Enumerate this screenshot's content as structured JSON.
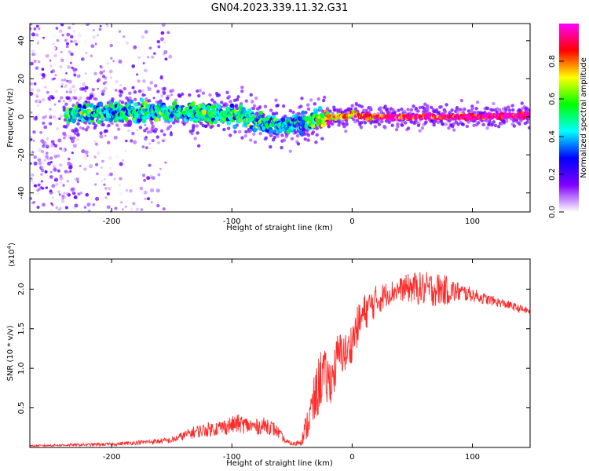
{
  "title": "GN04.2023.339.11.32.G31",
  "chart_data": [
    {
      "type": "heatmap",
      "xlabel": "Height of straight line (km)",
      "ylabel": "Frequency (Hz)",
      "xlim": [
        -268,
        148
      ],
      "ylim": [
        -50,
        49
      ],
      "xticks": [
        -200,
        -100,
        0,
        100
      ],
      "yticks": [
        -40,
        -20,
        0,
        20,
        40
      ],
      "colorbar": {
        "label": "Normalized spectral amplitude",
        "range": [
          0,
          1
        ],
        "ticks": [
          0.0,
          0.2,
          0.4,
          0.6,
          0.8
        ],
        "tick_labels": [
          "0.0",
          "0.2",
          "0.4",
          "0.6",
          "0.8"
        ],
        "colormap": [
          "#ffffff",
          "#8000ff",
          "#0000ff",
          "#00ffff",
          "#00ff00",
          "#ffff00",
          "#ff0000",
          "#ff00ff"
        ]
      },
      "trace": {
        "x": [
          -235,
          -200,
          -160,
          -130,
          -100,
          -80,
          -60,
          -45,
          -38,
          -30,
          -20,
          -10,
          -3,
          0,
          5,
          10,
          30,
          60,
          100,
          148
        ],
        "freq": [
          2,
          2,
          3,
          2,
          1,
          -2,
          -5,
          -4,
          -4,
          -1,
          0,
          0,
          0,
          2,
          1,
          0,
          0,
          0,
          0,
          1
        ],
        "amplitude": [
          0.45,
          0.45,
          0.45,
          0.5,
          0.5,
          0.45,
          0.4,
          0.35,
          0.45,
          0.6,
          0.75,
          0.8,
          0.8,
          0.75,
          0.8,
          0.85,
          0.9,
          0.95,
          0.95,
          0.95
        ]
      }
    },
    {
      "type": "line",
      "xlabel": "Height of straight line (km)",
      "ylabel": "SNR (10 * v/v)",
      "y_multiplier_label": "(x10",
      "y_multiplier_exp": "4",
      "xlim": [
        -268,
        148
      ],
      "ylim": [
        0,
        23800
      ],
      "xticks": [
        -200,
        -100,
        0,
        100
      ],
      "yticks": [
        5000,
        10000,
        15000,
        20000
      ],
      "ytick_labels": [
        "0.5",
        "1.0",
        "1.5",
        "2.0"
      ],
      "series": [
        {
          "color": "#ff2a2a",
          "x": [
            -268,
            -240,
            -200,
            -170,
            -150,
            -140,
            -130,
            -110,
            -95,
            -80,
            -70,
            -62,
            -55,
            -48,
            -42,
            -36,
            -30,
            -25,
            -22,
            -18,
            -15,
            -12,
            -8,
            -4,
            0,
            5,
            10,
            15,
            20,
            25,
            30,
            40,
            50,
            60,
            70,
            80,
            90,
            100,
            110,
            120,
            130,
            140,
            148
          ],
          "y": [
            200,
            300,
            400,
            700,
            900,
            1500,
            2000,
            2500,
            3000,
            2600,
            2800,
            2000,
            700,
            400,
            900,
            3500,
            6500,
            9500,
            8500,
            8500,
            9500,
            11500,
            12000,
            11800,
            13500,
            15500,
            17000,
            17800,
            18500,
            19000,
            19500,
            20000,
            20200,
            20000,
            20000,
            19800,
            19600,
            19300,
            18800,
            18400,
            18000,
            17500,
            17200
          ],
          "noise": [
            100,
            150,
            200,
            300,
            400,
            600,
            800,
            1000,
            1200,
            1000,
            1100,
            800,
            300,
            300,
            600,
            2500,
            3500,
            4000,
            3500,
            3000,
            3000,
            3000,
            2800,
            2500,
            2600,
            2600,
            2400,
            2200,
            2000,
            1800,
            1500,
            1500,
            2000,
            2200,
            2200,
            1800,
            1200,
            900,
            700,
            600,
            550,
            500,
            450
          ]
        }
      ]
    }
  ]
}
